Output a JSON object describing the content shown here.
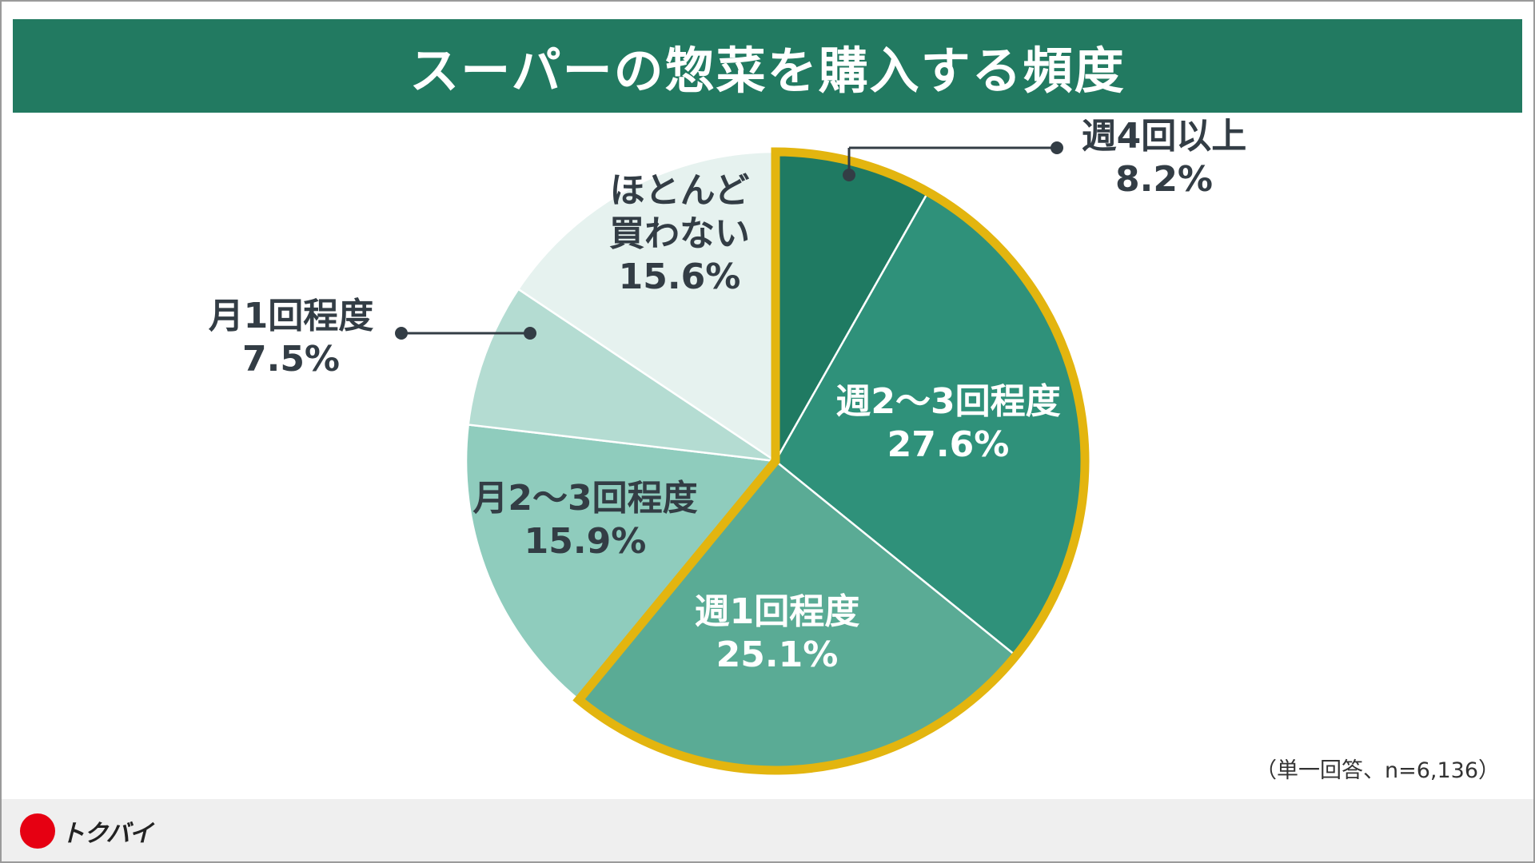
{
  "title": "スーパーの惣菜を購入する頻度",
  "note": "（単一回答、n=6,136）",
  "brand": {
    "name": "トクバイ",
    "color": "#e60012"
  },
  "colors": {
    "header_bg": "#227a61",
    "highlight_outline": "#e3b50f",
    "label_dark": "#333d45",
    "label_light": "#ffffff"
  },
  "chart_data": {
    "type": "pie",
    "title": "スーパーの惣菜を購入する頻度",
    "start": "12 o'clock",
    "direction": "clockwise",
    "highlighted_group": [
      "週4回以上",
      "週2〜3回程度",
      "週1回程度"
    ],
    "slices": [
      {
        "label": "週4回以上",
        "value": 8.2,
        "value_label": "8.2%",
        "color": "#1f7a62",
        "label_color": "#333d45",
        "callout": true
      },
      {
        "label": "週2〜3回程度",
        "value": 27.6,
        "value_label": "27.6%",
        "color": "#2f917a",
        "label_color": "#ffffff",
        "callout": false
      },
      {
        "label": "週1回程度",
        "value": 25.1,
        "value_label": "25.1%",
        "color": "#5aab95",
        "label_color": "#ffffff",
        "callout": false
      },
      {
        "label": "月2〜3回程度",
        "value": 15.9,
        "value_label": "15.9%",
        "color": "#8fccbd",
        "label_color": "#333d45",
        "callout": false
      },
      {
        "label": "月1回程度",
        "value": 7.5,
        "value_label": "7.5%",
        "color": "#b4dcd2",
        "label_color": "#333d45",
        "callout": true
      },
      {
        "label": "ほとんど\n買わない",
        "value": 15.6,
        "value_label": "15.6%",
        "color": "#e6f2ef",
        "label_color": "#333d45",
        "callout": false
      }
    ]
  }
}
